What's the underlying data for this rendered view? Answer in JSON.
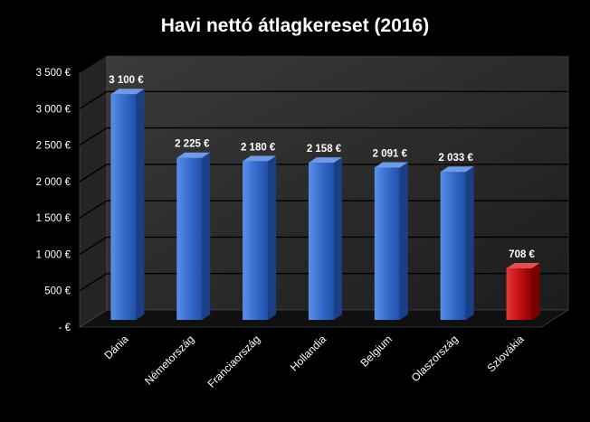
{
  "chart_data": {
    "type": "bar",
    "title": "Havi nettó átlagkereset (2016)",
    "categories": [
      "Dánia",
      "Németország",
      "Franciaország",
      "Hollandia",
      "Belgium",
      "Olaszország",
      "Szlovákia"
    ],
    "values": [
      3100,
      2225,
      2180,
      2158,
      2091,
      2033,
      708
    ],
    "data_labels": [
      "3 100 €",
      "2 225 €",
      "2 180 €",
      "2 158 €",
      "2 091 €",
      "2 033 €",
      "708 €"
    ],
    "bar_colors": [
      "#2e63c4",
      "#2e63c4",
      "#2e63c4",
      "#2e63c4",
      "#2e63c4",
      "#2e63c4",
      "#c00000"
    ],
    "ylim": [
      0,
      3500
    ],
    "y_ticks": [
      0,
      500,
      1000,
      1500,
      2000,
      2500,
      3000,
      3500
    ],
    "y_tick_labels": [
      "-  €",
      "500 €",
      "1 000 €",
      "1 500 €",
      "2 000 €",
      "2 500 €",
      "3 000 €",
      "3 500 €"
    ],
    "grid": true,
    "legend": false,
    "style": "3d",
    "background_color": "#000000",
    "wall_color": "#2b2b2b",
    "floor_color": "#101010"
  }
}
